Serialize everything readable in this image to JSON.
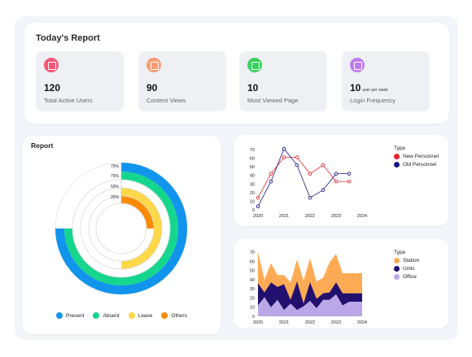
{
  "report": {
    "title": "Today's Report",
    "stats": [
      {
        "icon": "chart-icon",
        "color": "#f5567a",
        "value": "120",
        "unit": "",
        "label": "Total Active Users"
      },
      {
        "icon": "chart-icon",
        "color": "#ff9b73",
        "value": "90",
        "unit": "",
        "label": "Content Views"
      },
      {
        "icon": "chart-icon",
        "color": "#3bd15e",
        "value": "10",
        "unit": "",
        "label": "Most Viewed Page"
      },
      {
        "icon": "chart-icon",
        "color": "#c07cf2",
        "value": "10",
        "unit": "user per week",
        "label": "Login Frequency"
      }
    ]
  },
  "donut": {
    "title": "Report",
    "ring_labels": [
      "75%",
      "75%",
      "50%",
      "25%"
    ],
    "legend": [
      {
        "name": "Present",
        "color": "#1194ec"
      },
      {
        "name": "Absent",
        "color": "#14d68d"
      },
      {
        "name": "Leave",
        "color": "#ffd84a"
      },
      {
        "name": "Others",
        "color": "#ff8a00"
      }
    ]
  },
  "chart_data": [
    {
      "type": "line",
      "x": [
        2020,
        2020.5,
        2021,
        2021.5,
        2022,
        2022.5,
        2023,
        2023.5
      ],
      "xticks": [
        "2020",
        "2021",
        "2022",
        "2023",
        "2024"
      ],
      "xlim": [
        2020,
        2024
      ],
      "ylim": [
        0,
        70
      ],
      "yticks": [
        "0",
        "10",
        "20",
        "30",
        "40",
        "50",
        "60",
        "70"
      ],
      "legend_title": "Type",
      "series": [
        {
          "name": "New Personnel",
          "color": "#e8212e",
          "values": [
            14,
            42,
            61,
            61,
            42,
            52,
            33,
            33
          ]
        },
        {
          "name": "Old Personnel",
          "color": "#15177f",
          "values": [
            4,
            33,
            71,
            52,
            14,
            23,
            42,
            42
          ]
        }
      ]
    },
    {
      "type": "area",
      "x": [
        2020,
        2020.25,
        2020.5,
        2020.75,
        2021,
        2021.25,
        2021.5,
        2021.75,
        2022,
        2022.25,
        2022.5,
        2022.75,
        2023,
        2023.25,
        2023.5,
        2023.75,
        2024
      ],
      "xticks": [
        "2020",
        "2021",
        "2022",
        "2023",
        "2024"
      ],
      "xlim": [
        2020,
        2024
      ],
      "ylim": [
        0,
        70
      ],
      "yticks": [
        "0",
        "10",
        "20",
        "30",
        "40",
        "50",
        "60",
        "70"
      ],
      "legend_title": "Type",
      "series": [
        {
          "name": "Station",
          "color": "#ffab55",
          "values": [
            70,
            40,
            58,
            45,
            45,
            37,
            62,
            39,
            63,
            38,
            42,
            59,
            68,
            47,
            47,
            47,
            47
          ]
        },
        {
          "name": "Units",
          "color": "#22106f",
          "values": [
            36,
            26,
            37,
            32,
            35,
            18,
            38,
            14,
            37,
            19,
            25,
            26,
            37,
            25,
            25,
            25,
            25
          ]
        },
        {
          "name": "Office",
          "color": "#b9a7e7",
          "values": [
            12,
            21,
            10,
            18,
            7,
            14,
            7,
            11,
            17,
            9,
            18,
            18,
            24,
            12,
            16,
            16,
            16
          ]
        }
      ]
    }
  ]
}
